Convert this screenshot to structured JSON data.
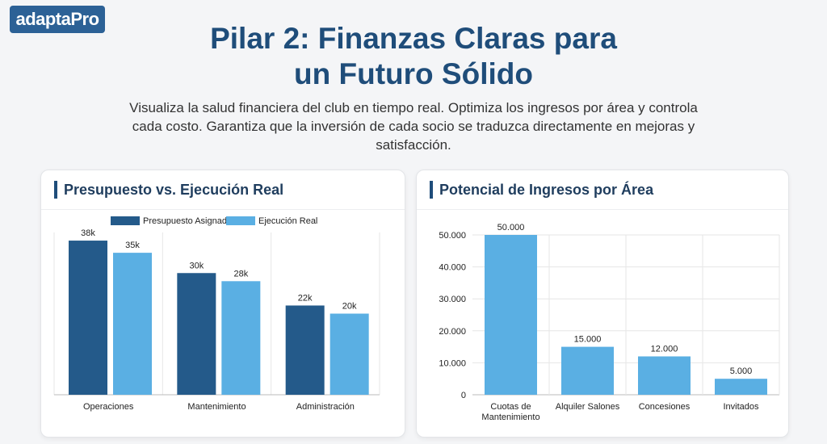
{
  "logo": "adaptaPro",
  "title_line1": "Pilar 2: Finanzas Claras para",
  "title_line2": "un Futuro Sólido",
  "subtitle": "Visualiza la salud financiera del club en tiempo real. Optimiza los ingresos por área y controla cada costo. Garantiza que la inversión de cada socio se traduzca directamente en mejoras y satisfacción.",
  "colors": {
    "dark": "#245a8a",
    "light": "#5aafe3"
  },
  "chart_data": [
    {
      "type": "bar",
      "title": "Presupuesto vs. Ejecución Real",
      "categories": [
        "Operaciones",
        "Mantenimiento",
        "Administración"
      ],
      "series": [
        {
          "name": "Presupuesto Asignado",
          "values": [
            38,
            30,
            22
          ],
          "labels": [
            "38k",
            "30k",
            "22k"
          ]
        },
        {
          "name": "Ejecución Real",
          "values": [
            35,
            28,
            20
          ],
          "labels": [
            "35k",
            "28k",
            "20k"
          ]
        }
      ],
      "ylim": [
        0,
        40
      ],
      "legend": "top-center"
    },
    {
      "type": "bar",
      "title": "Potencial de Ingresos por Área",
      "categories": [
        [
          "Cuotas de",
          "Mantenimiento"
        ],
        [
          "Alquiler Salones"
        ],
        [
          "Concesiones"
        ],
        [
          "Invitados"
        ]
      ],
      "values": [
        50000,
        15000,
        12000,
        5000
      ],
      "labels": [
        "50.000",
        "15.000",
        "12.000",
        "5.000"
      ],
      "yticks": [
        "0",
        "10.000",
        "20.000",
        "30.000",
        "40.000",
        "50.000"
      ],
      "ylim": [
        0,
        50000
      ]
    }
  ]
}
